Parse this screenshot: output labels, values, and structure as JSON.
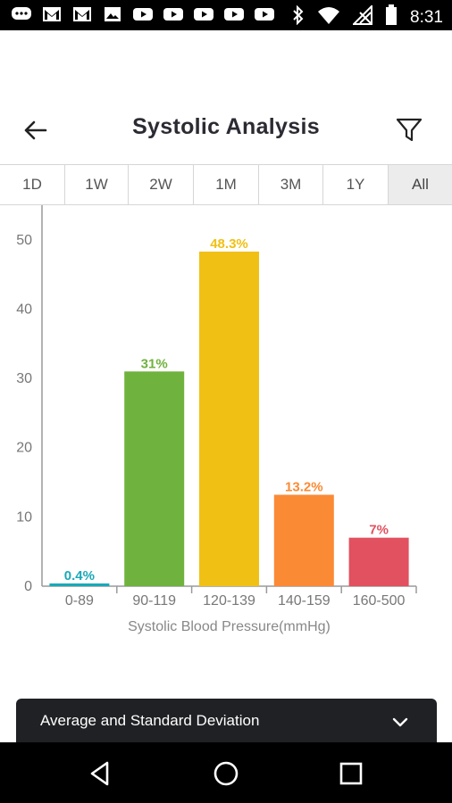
{
  "status_bar": {
    "time": "8:31",
    "left_icons": [
      "chat-icon",
      "gmail-icon",
      "gmail-icon",
      "photo-icon",
      "youtube-icon",
      "youtube-icon",
      "youtube-icon",
      "youtube-icon",
      "youtube-icon"
    ],
    "right_icons": [
      "bluetooth-icon",
      "wifi-icon",
      "no-signal-icon",
      "battery-icon"
    ]
  },
  "header": {
    "title": "Systolic Analysis",
    "back_icon": "arrow-left-icon",
    "filter_icon": "filter-icon"
  },
  "tabs": [
    {
      "label": "1D",
      "active": false
    },
    {
      "label": "1W",
      "active": false
    },
    {
      "label": "2W",
      "active": false
    },
    {
      "label": "1M",
      "active": false
    },
    {
      "label": "3M",
      "active": false
    },
    {
      "label": "1Y",
      "active": false
    },
    {
      "label": "All",
      "active": true
    }
  ],
  "chart_data": {
    "type": "bar",
    "xlabel": "Systolic Blood Pressure(mmHg)",
    "ylabel": "",
    "ylim": [
      0,
      55
    ],
    "yticks": [
      0,
      10,
      20,
      30,
      40,
      50
    ],
    "categories": [
      "0-89",
      "90-119",
      "120-139",
      "140-159",
      "160-500"
    ],
    "values": [
      0.4,
      31,
      48.3,
      13.2,
      7
    ],
    "labels": [
      "0.4%",
      "31%",
      "48.3%",
      "13.2%",
      "7%"
    ],
    "colors": [
      "#19a9b8",
      "#6fb23d",
      "#f0c015",
      "#fb8a35",
      "#e1515f"
    ],
    "grid": false,
    "legend": "none"
  },
  "bottom_card": {
    "label": "Average and Standard Deviation",
    "icon": "chevron-down-icon"
  },
  "nav_bar": {
    "icons": [
      "back-triangle-icon",
      "home-circle-icon",
      "recents-square-icon"
    ]
  }
}
